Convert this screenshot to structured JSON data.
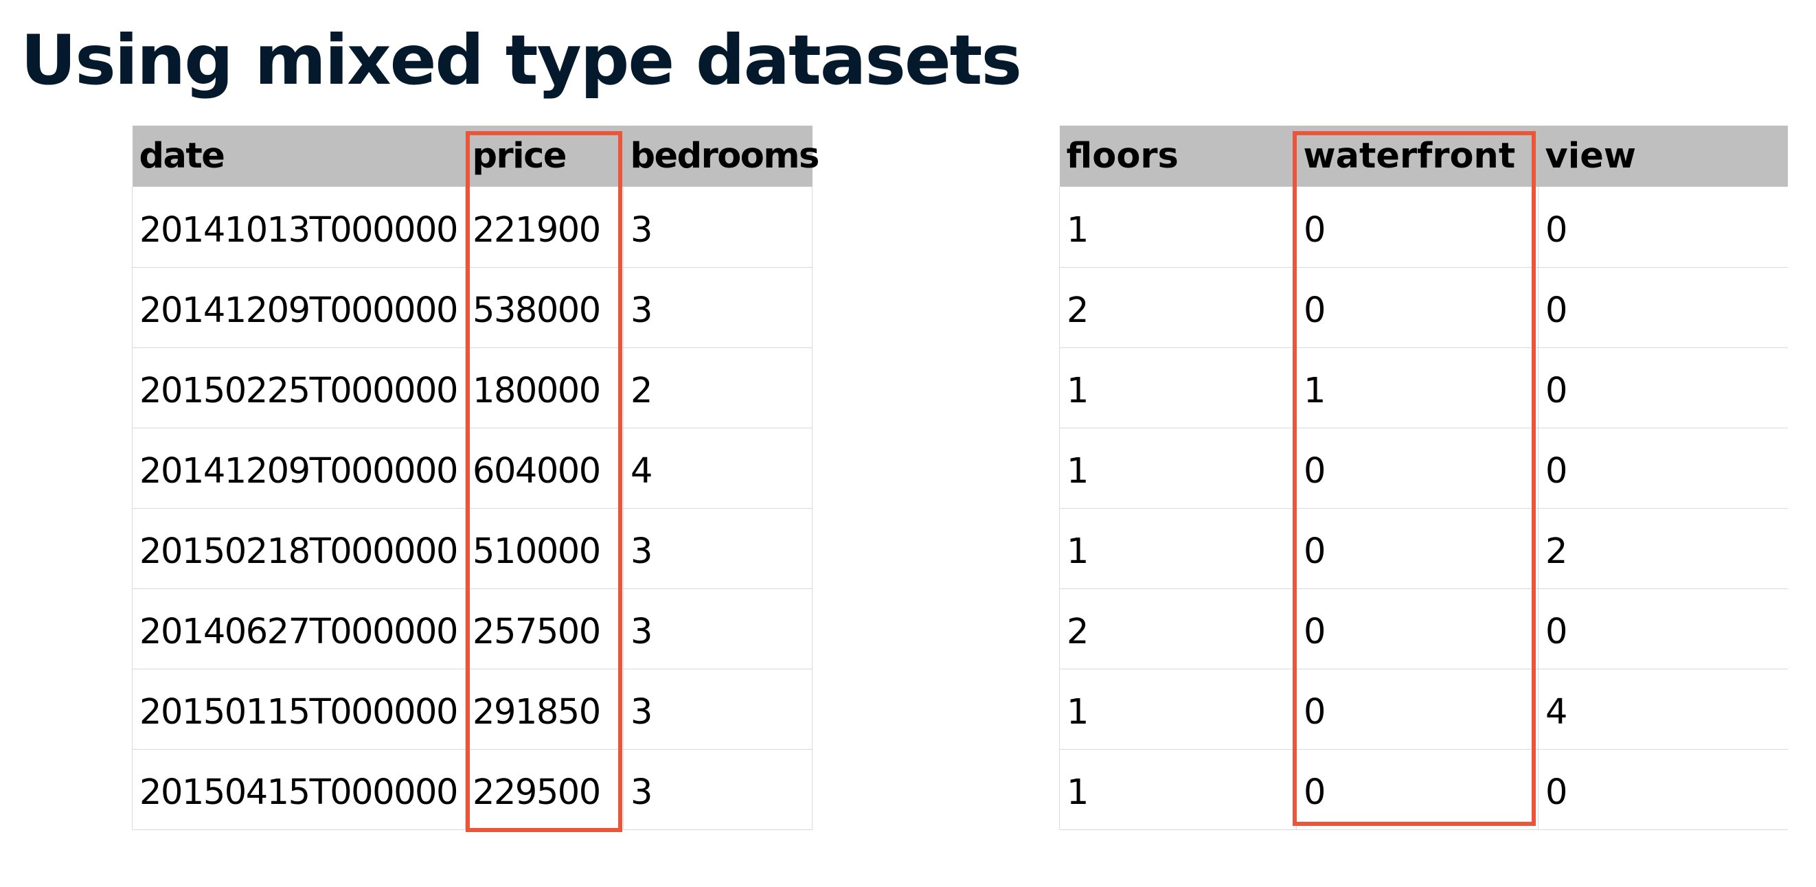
{
  "title": "Using mixed type datasets",
  "left_table": {
    "headers": [
      "date",
      "price",
      "bedrooms"
    ],
    "rows": [
      [
        "20141013T000000",
        "221900",
        "3"
      ],
      [
        "20141209T000000",
        "538000",
        "3"
      ],
      [
        "20150225T000000",
        "180000",
        "2"
      ],
      [
        "20141209T000000",
        "604000",
        "4"
      ],
      [
        "20150218T000000",
        "510000",
        "3"
      ],
      [
        "20140627T000000",
        "257500",
        "3"
      ],
      [
        "20150115T000000",
        "291850",
        "3"
      ],
      [
        "20150415T000000",
        "229500",
        "3"
      ]
    ],
    "highlighted_column": "price"
  },
  "right_table": {
    "headers": [
      "floors",
      "waterfront",
      "view"
    ],
    "rows": [
      [
        "1",
        "0",
        "0"
      ],
      [
        "2",
        "0",
        "0"
      ],
      [
        "1",
        "1",
        "0"
      ],
      [
        "1",
        "0",
        "0"
      ],
      [
        "1",
        "0",
        "2"
      ],
      [
        "2",
        "0",
        "0"
      ],
      [
        "1",
        "0",
        "4"
      ],
      [
        "1",
        "0",
        "0"
      ]
    ],
    "highlighted_column": "waterfront"
  },
  "colors": {
    "title": "#05192d",
    "header_background": "#bfbfbf",
    "highlight_box": "#e9563a",
    "grid_line": "#d9d9d9"
  }
}
